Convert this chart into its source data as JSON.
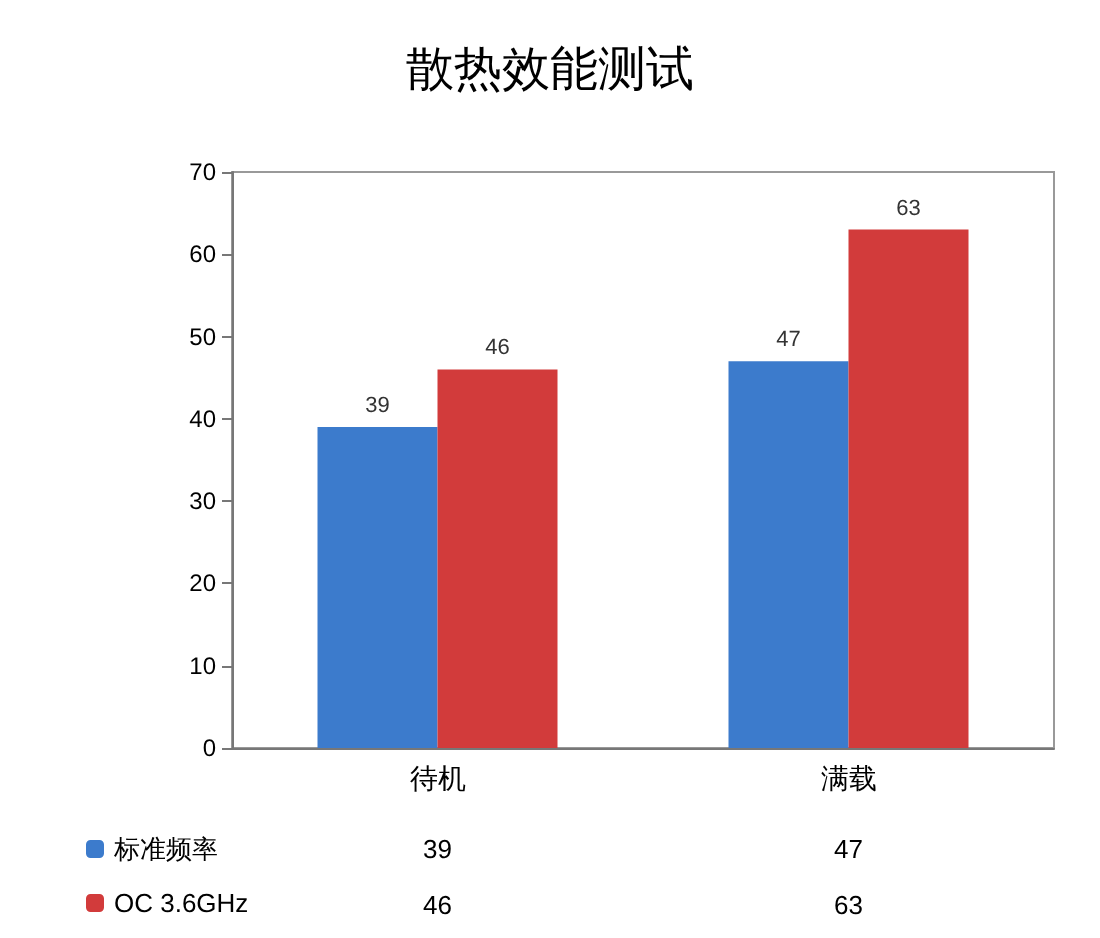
{
  "chart_data": {
    "type": "bar",
    "title": "散热效能测试",
    "categories": [
      "待机",
      "满载"
    ],
    "series": [
      {
        "name": "标准频率",
        "color": "#3c7bcc",
        "values": [
          39,
          47
        ],
        "value_labels": [
          "39",
          "47"
        ]
      },
      {
        "name": "OC 3.6GHz",
        "color": "#d23b3b",
        "values": [
          46,
          63
        ],
        "value_labels": [
          "46",
          "63"
        ]
      }
    ],
    "ylim": [
      0,
      70
    ],
    "yticks": [
      0,
      10,
      20,
      30,
      40,
      50,
      60,
      70
    ],
    "grid": false,
    "legend": "bottom left",
    "annotations": [
      "39",
      "47",
      "46",
      "63"
    ]
  }
}
